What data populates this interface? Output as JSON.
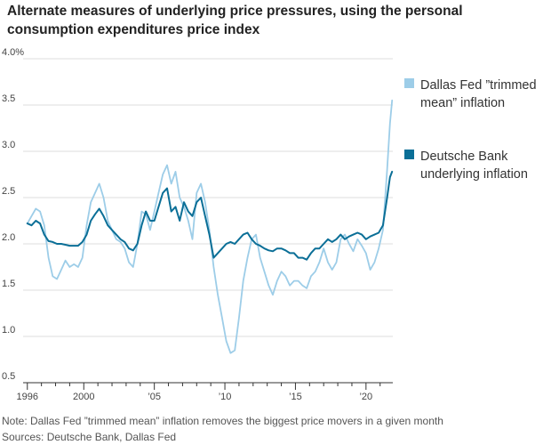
{
  "title": "Alternate measures of underlying price pressures, using the personal consumption expenditures price index",
  "note": "Note: Dallas Fed ”trimmed mean” inflation removes the biggest price movers in a given month",
  "sources": "Sources: Deutsche Bank, Dallas Fed",
  "colors": {
    "trimmed": "#9dcde8",
    "deutsche": "#0b6f97",
    "grid": "#dcdcdc",
    "axis": "#333333"
  },
  "chart_data": {
    "type": "line",
    "title": "Alternate measures of underlying price pressures, using the personal consumption expenditures price index",
    "ylim": [
      0.5,
      4.0
    ],
    "xlim": [
      1995.7,
      2021.9
    ],
    "grid": true,
    "legend_position": "right",
    "y_ticks": [
      {
        "value": 4.0,
        "label": "4.0%"
      },
      {
        "value": 3.5,
        "label": "3.5"
      },
      {
        "value": 3.0,
        "label": "3.0"
      },
      {
        "value": 2.5,
        "label": "2.5"
      },
      {
        "value": 2.0,
        "label": "2.0"
      },
      {
        "value": 1.5,
        "label": "1.5"
      },
      {
        "value": 1.0,
        "label": "1.0"
      },
      {
        "value": 0.5,
        "label": "0.5"
      }
    ],
    "x_ticks": [
      {
        "value": 1996,
        "label": "1996"
      },
      {
        "value": 2000,
        "label": "2000"
      },
      {
        "value": 2005,
        "label": "’05"
      },
      {
        "value": 2010,
        "label": "’10"
      },
      {
        "value": 2015,
        "label": "’15"
      },
      {
        "value": 2020,
        "label": "’20"
      }
    ],
    "x_minor_ticks": [
      1997,
      1998,
      1999,
      2001,
      2002,
      2003,
      2004,
      2006,
      2007,
      2008,
      2009,
      2011,
      2012,
      2013,
      2014,
      2016,
      2017,
      2018,
      2019,
      2021
    ],
    "series": [
      {
        "name": "Dallas Fed ”trimmed mean” inflation",
        "key": "trimmed",
        "x": [
          1996.0,
          1996.3,
          1996.6,
          1996.9,
          1997.2,
          1997.5,
          1997.8,
          1998.1,
          1998.4,
          1998.7,
          1999.0,
          1999.3,
          1999.6,
          1999.9,
          2000.2,
          2000.5,
          2000.8,
          2001.1,
          2001.4,
          2001.7,
          2002.0,
          2002.3,
          2002.6,
          2002.9,
          2003.2,
          2003.5,
          2003.8,
          2004.1,
          2004.4,
          2004.7,
          2005.0,
          2005.3,
          2005.6,
          2005.9,
          2006.2,
          2006.5,
          2006.8,
          2007.1,
          2007.4,
          2007.7,
          2008.0,
          2008.3,
          2008.6,
          2008.9,
          2009.2,
          2009.5,
          2009.8,
          2010.1,
          2010.4,
          2010.7,
          2011.0,
          2011.3,
          2011.6,
          2011.9,
          2012.2,
          2012.5,
          2012.8,
          2013.1,
          2013.4,
          2013.7,
          2014.0,
          2014.3,
          2014.6,
          2014.9,
          2015.2,
          2015.5,
          2015.8,
          2016.1,
          2016.4,
          2016.7,
          2017.0,
          2017.3,
          2017.6,
          2017.9,
          2018.2,
          2018.5,
          2018.8,
          2019.1,
          2019.4,
          2019.7,
          2020.0,
          2020.3,
          2020.6,
          2020.9,
          2021.2,
          2021.5,
          2021.7,
          2021.85
        ],
        "values": [
          2.22,
          2.3,
          2.38,
          2.35,
          2.2,
          1.85,
          1.65,
          1.62,
          1.72,
          1.82,
          1.75,
          1.78,
          1.75,
          1.85,
          2.2,
          2.45,
          2.55,
          2.65,
          2.5,
          2.25,
          2.15,
          2.05,
          2.02,
          1.95,
          1.8,
          1.75,
          2.0,
          2.35,
          2.32,
          2.15,
          2.35,
          2.55,
          2.75,
          2.85,
          2.65,
          2.78,
          2.5,
          2.4,
          2.25,
          2.05,
          2.55,
          2.65,
          2.45,
          2.15,
          1.75,
          1.45,
          1.2,
          0.95,
          0.82,
          0.85,
          1.2,
          1.6,
          1.85,
          2.05,
          2.1,
          1.85,
          1.7,
          1.55,
          1.45,
          1.6,
          1.7,
          1.65,
          1.55,
          1.6,
          1.6,
          1.55,
          1.52,
          1.65,
          1.7,
          1.8,
          1.95,
          1.8,
          1.72,
          1.8,
          2.05,
          2.1,
          2.0,
          1.92,
          2.05,
          1.98,
          1.9,
          1.72,
          1.8,
          1.95,
          2.15,
          2.8,
          3.3,
          3.55
        ]
      },
      {
        "name": "Deutsche Bank underlying inflation",
        "key": "deutsche",
        "x": [
          1996.0,
          1996.3,
          1996.6,
          1996.9,
          1997.2,
          1997.5,
          1997.8,
          1998.1,
          1998.4,
          1998.7,
          1999.0,
          1999.3,
          1999.6,
          1999.9,
          2000.2,
          2000.5,
          2000.8,
          2001.1,
          2001.4,
          2001.7,
          2002.0,
          2002.3,
          2002.6,
          2002.9,
          2003.2,
          2003.5,
          2003.8,
          2004.1,
          2004.4,
          2004.7,
          2005.0,
          2005.3,
          2005.6,
          2005.9,
          2006.2,
          2006.5,
          2006.8,
          2007.1,
          2007.4,
          2007.7,
          2008.0,
          2008.3,
          2008.6,
          2008.9,
          2009.2,
          2009.5,
          2009.8,
          2010.1,
          2010.4,
          2010.7,
          2011.0,
          2011.3,
          2011.6,
          2011.9,
          2012.2,
          2012.5,
          2012.8,
          2013.1,
          2013.4,
          2013.7,
          2014.0,
          2014.3,
          2014.6,
          2014.9,
          2015.2,
          2015.5,
          2015.8,
          2016.1,
          2016.4,
          2016.7,
          2017.0,
          2017.3,
          2017.6,
          2017.9,
          2018.2,
          2018.5,
          2018.8,
          2019.1,
          2019.4,
          2019.7,
          2020.0,
          2020.3,
          2020.6,
          2020.9,
          2021.2,
          2021.5,
          2021.7,
          2021.85
        ],
        "values": [
          2.22,
          2.2,
          2.25,
          2.22,
          2.1,
          2.03,
          2.02,
          2.0,
          2.0,
          1.99,
          1.98,
          1.98,
          1.98,
          2.02,
          2.1,
          2.25,
          2.32,
          2.38,
          2.3,
          2.2,
          2.15,
          2.1,
          2.05,
          2.02,
          1.95,
          1.93,
          2.0,
          2.2,
          2.35,
          2.25,
          2.25,
          2.4,
          2.55,
          2.6,
          2.35,
          2.4,
          2.25,
          2.45,
          2.35,
          2.3,
          2.45,
          2.5,
          2.3,
          2.1,
          1.85,
          1.9,
          1.95,
          2.0,
          2.02,
          2.0,
          2.05,
          2.1,
          2.12,
          2.05,
          2.0,
          1.98,
          1.95,
          1.93,
          1.92,
          1.95,
          1.95,
          1.93,
          1.9,
          1.9,
          1.85,
          1.85,
          1.83,
          1.9,
          1.95,
          1.95,
          2.0,
          2.05,
          2.02,
          2.05,
          2.1,
          2.05,
          2.08,
          2.1,
          2.12,
          2.1,
          2.05,
          2.08,
          2.1,
          2.12,
          2.2,
          2.5,
          2.72,
          2.78
        ]
      }
    ],
    "legend": [
      {
        "key": "trimmed",
        "lines": [
          "Dallas Fed ”trimmed",
          "mean” inflation"
        ]
      },
      {
        "key": "deutsche",
        "lines": [
          "Deutsche Bank",
          "underlying inflation"
        ]
      }
    ]
  }
}
